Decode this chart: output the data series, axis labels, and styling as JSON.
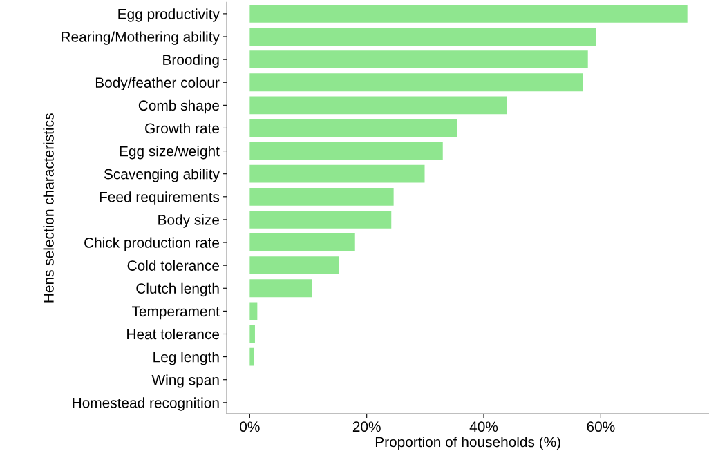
{
  "chart_data": {
    "type": "bar",
    "orientation": "horizontal",
    "categories": [
      "Egg productivity",
      "Rearing/Mothering ability",
      "Brooding",
      "Body/feather colour",
      "Comb shape",
      "Growth rate",
      "Egg size/weight",
      "Scavenging ability",
      "Feed requirements",
      "Body size",
      "Chick production rate",
      "Cold tolerance",
      "Clutch length",
      "Temperament",
      "Heat tolerance",
      "Leg length",
      "Wing span",
      "Homestead recognition"
    ],
    "values": [
      74.8,
      59.2,
      57.8,
      56.9,
      43.9,
      35.4,
      33.0,
      29.9,
      24.6,
      24.2,
      18.0,
      15.3,
      10.6,
      1.3,
      0.9,
      0.7,
      0,
      0
    ],
    "color": "#8fe68f",
    "xlabel": "Proportion of households (%)",
    "ylabel": "Hens selection characteristics",
    "xlim": [
      -3.9,
      78.5
    ],
    "xticks": [
      {
        "value": 0,
        "label": "0%"
      },
      {
        "value": 20,
        "label": "20%"
      },
      {
        "value": 40,
        "label": "40%"
      },
      {
        "value": 60,
        "label": "60%"
      }
    ],
    "grid": false
  }
}
